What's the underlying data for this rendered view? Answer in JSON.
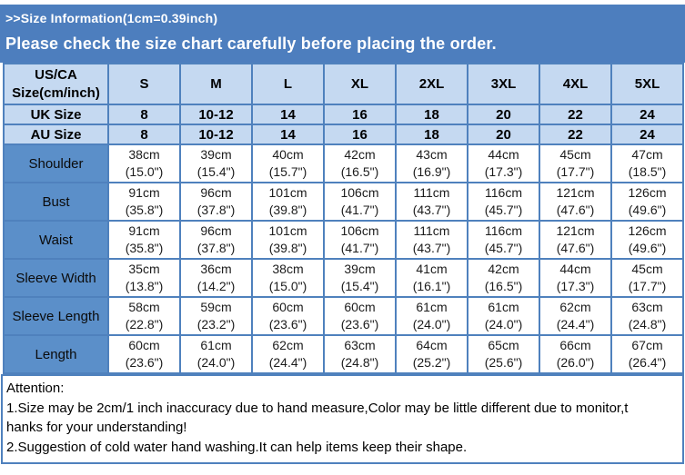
{
  "banner": {
    "title": ">>Size Information(1cm=0.39inch)",
    "notice": "Please check the size chart carefully before placing the order."
  },
  "table": {
    "corner": {
      "line1": "US/CA",
      "line2": "Size(cm/inch)"
    },
    "size_columns": [
      "S",
      "M",
      "L",
      "XL",
      "2XL",
      "3XL",
      "4XL",
      "5XL"
    ],
    "uk_size": {
      "label": "UK Size",
      "values": [
        "8",
        "10-12",
        "14",
        "16",
        "18",
        "20",
        "22",
        "24"
      ]
    },
    "au_size": {
      "label": "AU Size",
      "values": [
        "8",
        "10-12",
        "14",
        "16",
        "18",
        "20",
        "22",
        "24"
      ]
    },
    "measurements": [
      {
        "label": "Shoulder",
        "cells": [
          {
            "cm": "38cm",
            "inch": "(15.0\")"
          },
          {
            "cm": "39cm",
            "inch": "(15.4\")"
          },
          {
            "cm": "40cm",
            "inch": "(15.7\")"
          },
          {
            "cm": "42cm",
            "inch": "(16.5\")"
          },
          {
            "cm": "43cm",
            "inch": "(16.9\")"
          },
          {
            "cm": "44cm",
            "inch": "(17.3\")"
          },
          {
            "cm": "45cm",
            "inch": "(17.7\")"
          },
          {
            "cm": "47cm",
            "inch": "(18.5\")"
          }
        ]
      },
      {
        "label": "Bust",
        "cells": [
          {
            "cm": "91cm",
            "inch": "(35.8\")"
          },
          {
            "cm": "96cm",
            "inch": "(37.8\")"
          },
          {
            "cm": "101cm",
            "inch": "(39.8\")"
          },
          {
            "cm": "106cm",
            "inch": "(41.7\")"
          },
          {
            "cm": "111cm",
            "inch": "(43.7\")"
          },
          {
            "cm": "116cm",
            "inch": "(45.7\")"
          },
          {
            "cm": "121cm",
            "inch": "(47.6\")"
          },
          {
            "cm": "126cm",
            "inch": "(49.6\")"
          }
        ]
      },
      {
        "label": "Waist",
        "cells": [
          {
            "cm": "91cm",
            "inch": "(35.8\")"
          },
          {
            "cm": "96cm",
            "inch": "(37.8\")"
          },
          {
            "cm": "101cm",
            "inch": "(39.8\")"
          },
          {
            "cm": "106cm",
            "inch": "(41.7\")"
          },
          {
            "cm": "111cm",
            "inch": "(43.7\")"
          },
          {
            "cm": "116cm",
            "inch": "(45.7\")"
          },
          {
            "cm": "121cm",
            "inch": "(47.6\")"
          },
          {
            "cm": "126cm",
            "inch": "(49.6\")"
          }
        ]
      },
      {
        "label": "Sleeve Width",
        "cells": [
          {
            "cm": "35cm",
            "inch": "(13.8\")"
          },
          {
            "cm": "36cm",
            "inch": "(14.2\")"
          },
          {
            "cm": "38cm",
            "inch": "(15.0\")"
          },
          {
            "cm": "39cm",
            "inch": "(15.4\")"
          },
          {
            "cm": "41cm",
            "inch": "(16.1\")"
          },
          {
            "cm": "42cm",
            "inch": "(16.5\")"
          },
          {
            "cm": "44cm",
            "inch": "(17.3\")"
          },
          {
            "cm": "45cm",
            "inch": "(17.7\")"
          }
        ]
      },
      {
        "label": "Sleeve Length",
        "cells": [
          {
            "cm": "58cm",
            "inch": "(22.8\")"
          },
          {
            "cm": "59cm",
            "inch": "(23.2\")"
          },
          {
            "cm": "60cm",
            "inch": "(23.6\")"
          },
          {
            "cm": "60cm",
            "inch": "(23.6\")"
          },
          {
            "cm": "61cm",
            "inch": "(24.0\")"
          },
          {
            "cm": "61cm",
            "inch": "(24.0\")"
          },
          {
            "cm": "62cm",
            "inch": "(24.4\")"
          },
          {
            "cm": "63cm",
            "inch": "(24.8\")"
          }
        ]
      },
      {
        "label": "Length",
        "cells": [
          {
            "cm": "60cm",
            "inch": "(23.6\")"
          },
          {
            "cm": "61cm",
            "inch": "(24.0\")"
          },
          {
            "cm": "62cm",
            "inch": "(24.4\")"
          },
          {
            "cm": "63cm",
            "inch": "(24.8\")"
          },
          {
            "cm": "64cm",
            "inch": "(25.2\")"
          },
          {
            "cm": "65cm",
            "inch": "(25.6\")"
          },
          {
            "cm": "66cm",
            "inch": "(26.0\")"
          },
          {
            "cm": "67cm",
            "inch": "(26.4\")"
          }
        ]
      }
    ]
  },
  "attention": {
    "title": "Attention:",
    "lines": [
      "1.Size may be 2cm/1 inch inaccuracy due to hand measure,Color may be little different due to monitor,t",
      "hanks for your understanding!",
      "2.Suggestion of cold water hand washing.It can help items keep their shape."
    ]
  },
  "colors": {
    "banner_blue": "#4d7ebe",
    "header_light_blue": "#c5d9f1",
    "label_blue": "#5b8fc9",
    "border_blue": "#4f81bd"
  }
}
